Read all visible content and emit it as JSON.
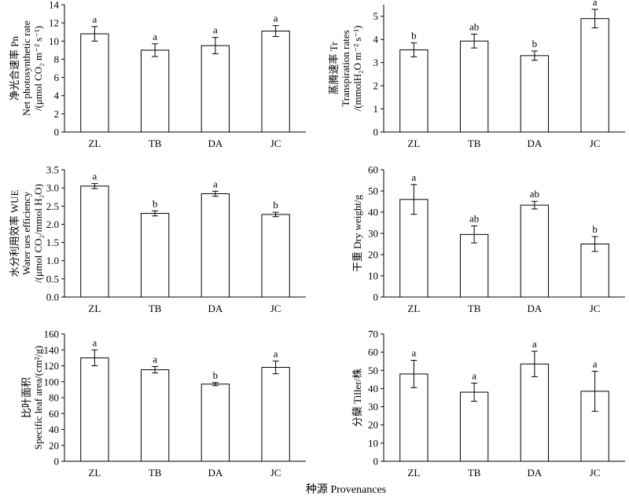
{
  "figure": {
    "xtitle": "种源 Provenances"
  },
  "chart_data": [
    {
      "type": "bar",
      "categories": [
        "ZL",
        "TB",
        "DA",
        "JC"
      ],
      "values": [
        10.8,
        9.0,
        9.5,
        11.1
      ],
      "errors": [
        0.8,
        0.7,
        0.9,
        0.6
      ],
      "significance": [
        "a",
        "a",
        "a",
        "a"
      ],
      "ylabel_lines": [
        "净光合速率 Pn",
        "Net photosynthetic rate",
        "/(μmol CO₂ m⁻² s⁻¹)"
      ],
      "ylim": [
        0,
        14
      ],
      "yticks": [
        0,
        2,
        4,
        6,
        8,
        10,
        12,
        14
      ],
      "ytick_labels": [
        "0",
        "2",
        "4",
        "6",
        "8",
        "10",
        "12",
        "14"
      ]
    },
    {
      "type": "bar",
      "categories": [
        "ZL",
        "TB",
        "DA",
        "JC"
      ],
      "values": [
        3.55,
        3.93,
        3.3,
        4.9
      ],
      "errors": [
        0.3,
        0.3,
        0.2,
        0.4
      ],
      "significance": [
        "b",
        "ab",
        "b",
        "a"
      ],
      "ylabel_lines": [
        "蒸腾速率 Tr",
        "Transpiration rates",
        "/(mmolH₂O m⁻² s⁻¹)"
      ],
      "ylim": [
        0,
        5.5
      ],
      "yticks": [
        0,
        1,
        2,
        3,
        4,
        5
      ],
      "ytick_labels": [
        "0",
        "1",
        "2",
        "3",
        "4",
        "5"
      ]
    },
    {
      "type": "bar",
      "categories": [
        "ZL",
        "TB",
        "DA",
        "JC"
      ],
      "values": [
        3.05,
        2.3,
        2.84,
        2.27
      ],
      "errors": [
        0.07,
        0.07,
        0.07,
        0.06
      ],
      "significance": [
        "a",
        "b",
        "a",
        "b"
      ],
      "ylabel_lines": [
        "水分利用效率 WUE",
        "Water ues efficiency",
        "/(μmol CO₂/mmol H₂O)"
      ],
      "ylim": [
        0,
        3.5
      ],
      "yticks": [
        0,
        0.5,
        1,
        1.5,
        2,
        2.5,
        3,
        3.5
      ],
      "ytick_labels": [
        "0.0",
        "0.5",
        "1.0",
        "1.5",
        "2.0",
        "2.5",
        "3.0",
        "3.5"
      ]
    },
    {
      "type": "bar",
      "categories": [
        "ZL",
        "TB",
        "DA",
        "JC"
      ],
      "values": [
        46,
        29.5,
        43.3,
        25
      ],
      "errors": [
        7,
        4,
        1.8,
        3.5
      ],
      "significance": [
        "a",
        "ab",
        "ab",
        "b"
      ],
      "ylabel_lines": [
        "干重 Dry weight/g"
      ],
      "ylim": [
        0,
        60
      ],
      "yticks": [
        0,
        10,
        20,
        30,
        40,
        50,
        60
      ],
      "ytick_labels": [
        "0",
        "10",
        "20",
        "30",
        "40",
        "50",
        "60"
      ]
    },
    {
      "type": "bar",
      "categories": [
        "ZL",
        "TB",
        "DA",
        "JC"
      ],
      "values": [
        130,
        115,
        97,
        118
      ],
      "errors": [
        10,
        4,
        2,
        8
      ],
      "significance": [
        "a",
        "a",
        "b",
        "a"
      ],
      "ylabel_lines": [
        "比叶面积",
        "Specific leaf area/(cm²/g)"
      ],
      "ylim": [
        0,
        160
      ],
      "yticks": [
        0,
        20,
        40,
        60,
        80,
        100,
        120,
        140,
        160
      ],
      "ytick_labels": [
        "0",
        "20",
        "40",
        "60",
        "80",
        "100",
        "120",
        "140",
        "160"
      ]
    },
    {
      "type": "bar",
      "categories": [
        "ZL",
        "TB",
        "DA",
        "JC"
      ],
      "values": [
        48,
        38,
        53.5,
        38.5
      ],
      "errors": [
        7.5,
        5,
        7,
        11
      ],
      "significance": [
        "a",
        "a",
        "a",
        "a"
      ],
      "ylabel_lines": [
        "分蘖 Tiller/株"
      ],
      "ylim": [
        0,
        70
      ],
      "yticks": [
        0,
        10,
        20,
        30,
        40,
        50,
        60,
        70
      ],
      "ytick_labels": [
        "0",
        "10",
        "20",
        "30",
        "40",
        "50",
        "60",
        "70"
      ]
    }
  ]
}
